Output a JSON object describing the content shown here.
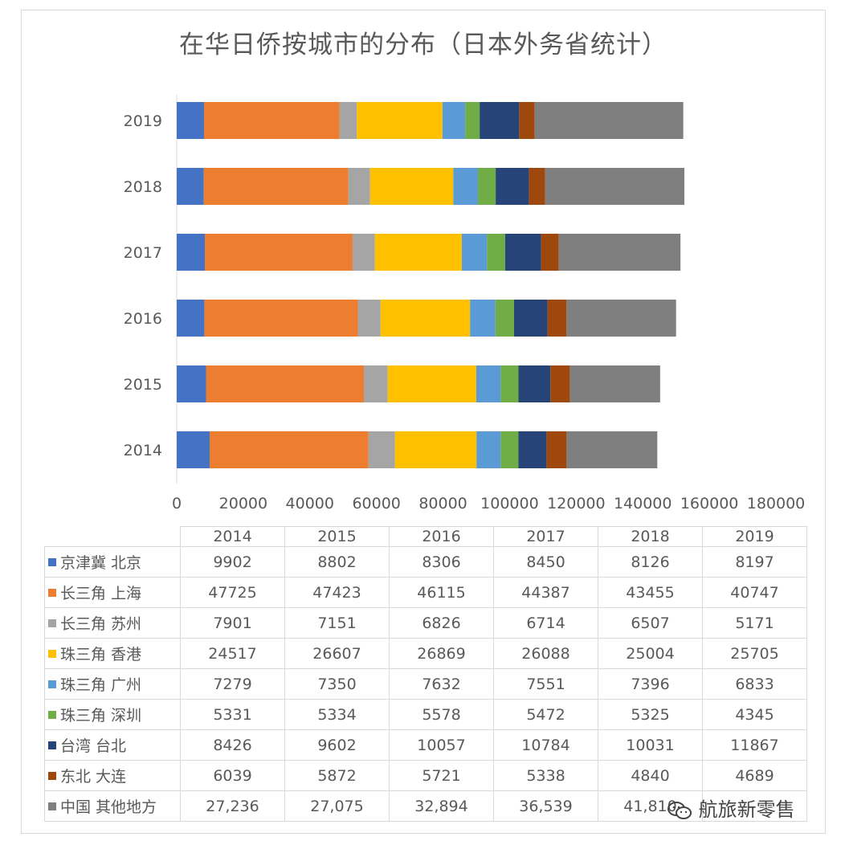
{
  "title": "在华日侨按城市的分布（日本外务省统计）",
  "watermark": "航旅新零售",
  "chart_data": {
    "type": "bar",
    "orientation": "horizontal",
    "stacked": true,
    "categories": [
      "2014",
      "2015",
      "2016",
      "2017",
      "2018",
      "2019"
    ],
    "xlim": [
      0,
      180000
    ],
    "x_ticks": [
      "0",
      "20000",
      "40000",
      "60000",
      "80000",
      "100000",
      "120000",
      "140000",
      "160000",
      "180000"
    ],
    "grid": false,
    "legend": "data-table",
    "series": [
      {
        "name": "京津冀 北京",
        "color": "#4472C4",
        "values": [
          9902,
          8802,
          8306,
          8450,
          8126,
          8197
        ],
        "labels": [
          "9902",
          "8802",
          "8306",
          "8450",
          "8126",
          "8197"
        ]
      },
      {
        "name": "长三角 上海",
        "color": "#ED7D31",
        "values": [
          47725,
          47423,
          46115,
          44387,
          43455,
          40747
        ],
        "labels": [
          "47725",
          "47423",
          "46115",
          "44387",
          "43455",
          "40747"
        ]
      },
      {
        "name": "长三角 苏州",
        "color": "#A5A5A5",
        "values": [
          7901,
          7151,
          6826,
          6714,
          6507,
          5171
        ],
        "labels": [
          "7901",
          "7151",
          "6826",
          "6714",
          "6507",
          "5171"
        ]
      },
      {
        "name": "珠三角 香港",
        "color": "#FFC000",
        "values": [
          24517,
          26607,
          26869,
          26088,
          25004,
          25705
        ],
        "labels": [
          "24517",
          "26607",
          "26869",
          "26088",
          "25004",
          "25705"
        ]
      },
      {
        "name": "珠三角 广州",
        "color": "#5B9BD5",
        "values": [
          7279,
          7350,
          7632,
          7551,
          7396,
          6833
        ],
        "labels": [
          "7279",
          "7350",
          "7632",
          "7551",
          "7396",
          "6833"
        ]
      },
      {
        "name": "珠三角 深圳",
        "color": "#70AD47",
        "values": [
          5331,
          5334,
          5578,
          5472,
          5325,
          4345
        ],
        "labels": [
          "5331",
          "5334",
          "5578",
          "5472",
          "5325",
          "4345"
        ]
      },
      {
        "name": "台湾 台北",
        "color": "#264478",
        "values": [
          8426,
          9602,
          10057,
          10784,
          10031,
          11867
        ],
        "labels": [
          "8426",
          "9602",
          "10057",
          "10784",
          "10031",
          "11867"
        ]
      },
      {
        "name": "东北 大连",
        "color": "#9E480E",
        "values": [
          6039,
          5872,
          5721,
          5338,
          4840,
          4689
        ],
        "labels": [
          "6039",
          "5872",
          "5721",
          "5338",
          "4840",
          "4689"
        ]
      },
      {
        "name": "中国 其他地方",
        "color": "#7F7F7F",
        "values": [
          27236,
          27075,
          32894,
          36539,
          41810,
          44617
        ],
        "labels": [
          "27,236",
          "27,075",
          "32,894",
          "36,539",
          "41,810",
          ""
        ]
      }
    ]
  }
}
